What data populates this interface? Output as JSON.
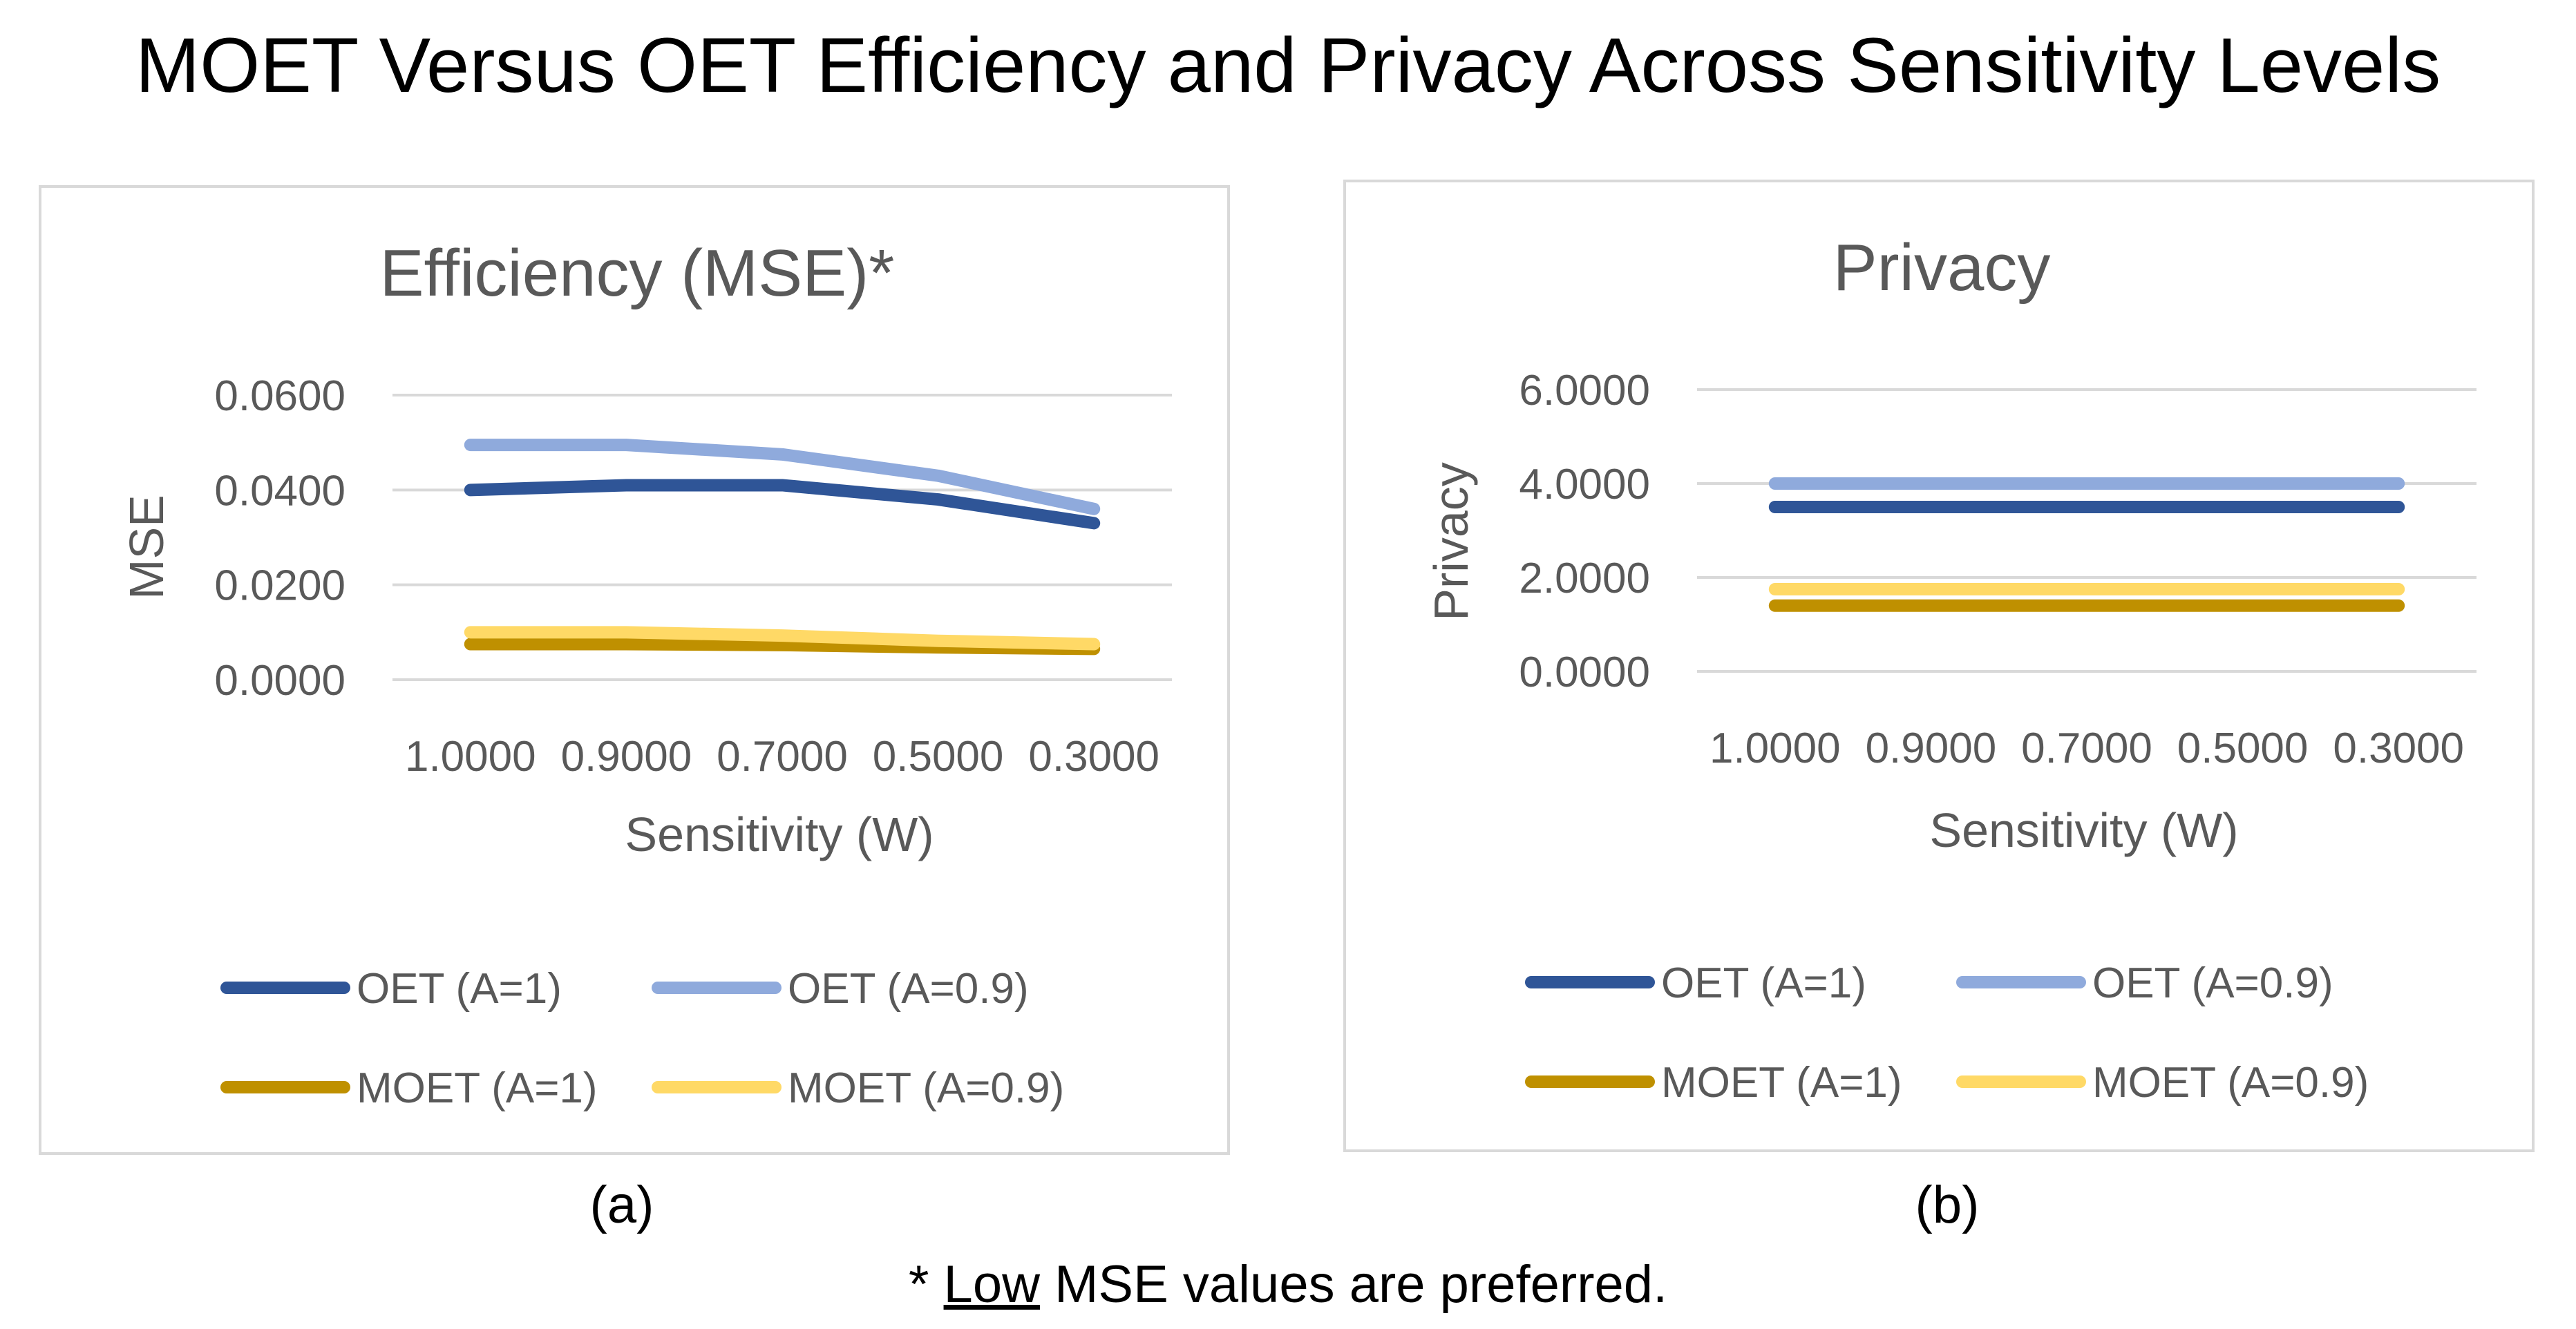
{
  "title": "MOET Versus OET Efficiency and Privacy Across Sensitivity Levels",
  "captions": {
    "a": "(a)",
    "b": "(b)"
  },
  "footnote": {
    "star": "*",
    "low": "Low",
    "rest": "MSE values are preferred."
  },
  "chart_data": [
    {
      "type": "line",
      "title": "Efficiency  (MSE)*",
      "xlabel": "Sensitivity (W)",
      "ylabel": "MSE",
      "categories": [
        "1.0000",
        "0.9000",
        "0.7000",
        "0.5000",
        "0.3000"
      ],
      "ylim": [
        0,
        0.06
      ],
      "yticks": [
        "0.0000",
        "0.0200",
        "0.0400",
        "0.0600"
      ],
      "grid": true,
      "legend": "bottom",
      "series": [
        {
          "name": "OET (A=1)",
          "color": "#2f5597",
          "values": [
            0.04,
            0.041,
            0.041,
            0.038,
            0.033
          ]
        },
        {
          "name": "OET (A=0.9)",
          "color": "#8faadc",
          "values": [
            0.0495,
            0.0495,
            0.0475,
            0.043,
            0.036
          ]
        },
        {
          "name": "MOET (A=1)",
          "color": "#bf9000",
          "values": [
            0.0075,
            0.0075,
            0.0073,
            0.0068,
            0.0065
          ]
        },
        {
          "name": "MOET (A=0.9)",
          "color": "#ffd966",
          "values": [
            0.01,
            0.01,
            0.0093,
            0.0082,
            0.0075
          ]
        }
      ]
    },
    {
      "type": "line",
      "title": "Privacy",
      "xlabel": "Sensitivity (W)",
      "ylabel": "Privacy",
      "categories": [
        "1.0000",
        "0.9000",
        "0.7000",
        "0.5000",
        "0.3000"
      ],
      "ylim": [
        0,
        6
      ],
      "yticks": [
        "0.0000",
        "2.0000",
        "4.0000",
        "6.0000"
      ],
      "grid": true,
      "legend": "bottom",
      "series": [
        {
          "name": "OET (A=1)",
          "color": "#2f5597",
          "values": [
            3.5,
            3.5,
            3.5,
            3.5,
            3.5
          ]
        },
        {
          "name": "OET (A=0.9)",
          "color": "#8faadc",
          "values": [
            4.0,
            4.0,
            4.0,
            4.0,
            4.0
          ]
        },
        {
          "name": "MOET (A=1)",
          "color": "#bf9000",
          "values": [
            1.4,
            1.4,
            1.4,
            1.4,
            1.4
          ]
        },
        {
          "name": "MOET (A=0.9)",
          "color": "#ffd966",
          "values": [
            1.75,
            1.75,
            1.75,
            1.75,
            1.75
          ]
        }
      ]
    }
  ]
}
